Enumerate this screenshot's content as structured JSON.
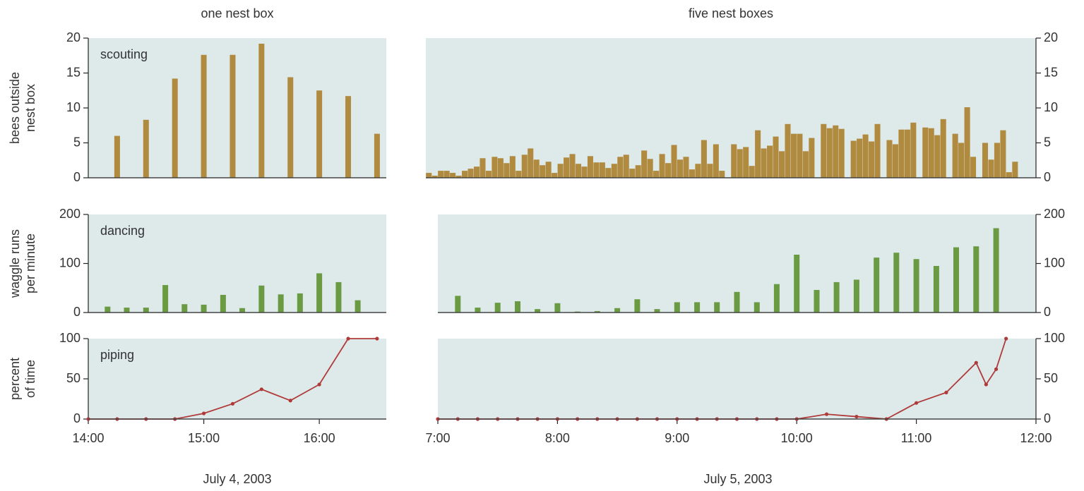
{
  "chart_data": [
    {
      "type": "bar",
      "title": "one nest box",
      "annotation": "scouting",
      "ylabel": [
        "bees outside",
        "nest box"
      ],
      "yaxis_side": "left",
      "color": "#b08a3e",
      "x": [
        14.25,
        14.5,
        14.75,
        15,
        15.25,
        15.5,
        15.75,
        16,
        16.25,
        16.5
      ],
      "values": [
        6,
        8.3,
        14.2,
        17.6,
        17.6,
        19.2,
        14.4,
        12.5,
        11.7,
        6.3
      ],
      "xlim": [
        14,
        16.58
      ],
      "ylim": [
        0,
        20
      ],
      "yticks": [
        0,
        5,
        10,
        15,
        20
      ]
    },
    {
      "type": "bar",
      "title": "five nest boxes",
      "yaxis_side": "right",
      "color": "#b08a3e",
      "x": [
        6.925,
        6.975,
        7.025,
        7.075,
        7.125,
        7.175,
        7.225,
        7.275,
        7.325,
        7.375,
        7.425,
        7.475,
        7.525,
        7.575,
        7.625,
        7.675,
        7.725,
        7.775,
        7.825,
        7.875,
        7.925,
        7.975,
        8.025,
        8.075,
        8.125,
        8.175,
        8.225,
        8.275,
        8.325,
        8.375,
        8.425,
        8.475,
        8.525,
        8.575,
        8.625,
        8.675,
        8.725,
        8.775,
        8.825,
        8.875,
        8.925,
        8.975,
        9.025,
        9.075,
        9.125,
        9.175,
        9.225,
        9.275,
        9.325,
        9.375,
        9.425,
        9.475,
        9.525,
        9.575,
        9.625,
        9.675,
        9.725,
        9.775,
        9.825,
        9.875,
        9.925,
        9.975,
        10.025,
        10.075,
        10.125,
        10.175,
        10.225,
        10.275,
        10.325,
        10.375,
        10.425,
        10.475,
        10.525,
        10.575,
        10.625,
        10.675,
        10.725,
        10.775,
        10.825,
        10.875,
        10.925,
        10.975,
        11.025,
        11.075,
        11.125,
        11.175,
        11.225,
        11.275,
        11.325,
        11.375,
        11.425,
        11.475,
        11.525,
        11.575,
        11.625,
        11.675,
        11.725,
        11.775,
        11.825
      ],
      "values": [
        0.7,
        0.3,
        1.0,
        1.0,
        0.7,
        0.3,
        1.0,
        1.3,
        1.6,
        2.8,
        1.0,
        3.0,
        2.8,
        2.1,
        3.1,
        1.0,
        3.3,
        4.2,
        2.6,
        1.8,
        2.3,
        0.7,
        2.0,
        2.9,
        3.4,
        2.0,
        1.6,
        3.1,
        2.2,
        2.2,
        1.4,
        2.0,
        3.0,
        3.3,
        1.3,
        1.8,
        3.9,
        2.7,
        1.0,
        3.4,
        2.1,
        4.7,
        2.6,
        3.0,
        1.2,
        2.0,
        5.4,
        2.0,
        4.8,
        1.0,
        0,
        4.8,
        4.1,
        4.4,
        1.7,
        6.8,
        4.2,
        4.6,
        5.9,
        3.8,
        7.7,
        6.3,
        6.3,
        3.8,
        5.7,
        0,
        7.7,
        7.1,
        7.5,
        7.0,
        0,
        5.3,
        5.6,
        6.2,
        5.2,
        7.7,
        0,
        5.4,
        4.8,
        6.9,
        6.9,
        7.9,
        0,
        7.2,
        7.1,
        6.1,
        8.4,
        0,
        6.3,
        5.0,
        10.1,
        3.0,
        0,
        5.0,
        2.6,
        5.0,
        6.8,
        0.8,
        2.3
      ],
      "xlim": [
        6.9,
        12
      ],
      "ylim": [
        0,
        20
      ],
      "yticks": [
        0,
        5,
        10,
        15,
        20
      ]
    },
    {
      "type": "bar",
      "annotation": "dancing",
      "ylabel": [
        "waggle runs",
        "per minute"
      ],
      "yaxis_side": "left",
      "color": "#6a9a42",
      "x": [
        14.167,
        14.333,
        14.5,
        14.667,
        14.833,
        15,
        15.167,
        15.333,
        15.5,
        15.667,
        15.833,
        16,
        16.167,
        16.333
      ],
      "values": [
        12,
        10,
        10,
        56,
        17,
        16,
        36,
        9,
        55,
        37,
        39,
        80,
        62,
        25
      ],
      "xlim": [
        14,
        16.58
      ],
      "ylim": [
        0,
        200
      ],
      "yticks": [
        0,
        100,
        200
      ]
    },
    {
      "type": "bar",
      "yaxis_side": "right",
      "color": "#6a9a42",
      "x": [
        7.167,
        7.333,
        7.5,
        7.667,
        7.833,
        8,
        8.167,
        8.333,
        8.5,
        8.667,
        8.833,
        9,
        9.167,
        9.333,
        9.5,
        9.667,
        9.833,
        10,
        10.167,
        10.333,
        10.5,
        10.667,
        10.833,
        11,
        11.167,
        11.333,
        11.5,
        11.667
      ],
      "values": [
        34,
        10,
        20,
        23,
        7,
        19,
        2,
        3,
        9,
        27,
        7,
        21,
        21,
        21,
        42,
        21,
        58,
        118,
        46,
        62,
        67,
        112,
        122,
        109,
        95,
        133,
        135,
        172
      ],
      "xlim": [
        7,
        12
      ],
      "ylim": [
        0,
        200
      ],
      "yticks": [
        0,
        100,
        200
      ]
    },
    {
      "type": "line",
      "annotation": "piping",
      "ylabel": [
        "percent",
        "of time"
      ],
      "xlabel": "July 4, 2003",
      "yaxis_side": "left",
      "color": "#b03a3a",
      "x": [
        14,
        14.25,
        14.5,
        14.75,
        15,
        15.25,
        15.5,
        15.75,
        16,
        16.25,
        16.5
      ],
      "values": [
        0,
        0,
        0,
        0,
        7,
        19,
        37,
        23,
        43,
        100,
        100
      ],
      "xlim": [
        14,
        16.58
      ],
      "ylim": [
        0,
        100
      ],
      "yticks": [
        0,
        50,
        100
      ],
      "xticks": [
        {
          "value": 14,
          "label": "14:00"
        },
        {
          "value": 15,
          "label": "15:00"
        },
        {
          "value": 16,
          "label": "16:00"
        }
      ]
    },
    {
      "type": "line",
      "xlabel": "July 5, 2003",
      "yaxis_side": "right",
      "color": "#b03a3a",
      "x": [
        7,
        7.167,
        7.333,
        7.5,
        7.667,
        7.833,
        8,
        8.167,
        8.333,
        8.5,
        8.667,
        8.833,
        9,
        9.167,
        9.333,
        9.5,
        9.667,
        9.833,
        10,
        10.25,
        10.5,
        10.75,
        11,
        11.25,
        11.5,
        11.583,
        11.667,
        11.75
      ],
      "values": [
        0,
        0,
        0,
        0,
        0,
        0,
        0,
        0,
        0,
        0,
        0,
        0,
        0,
        0,
        0,
        0,
        0,
        0,
        0,
        6,
        3,
        0,
        20,
        33,
        70,
        43,
        62,
        100
      ],
      "xlim": [
        7,
        12
      ],
      "ylim": [
        0,
        100
      ],
      "yticks": [
        0,
        50,
        100
      ],
      "xticks": [
        {
          "value": 7,
          "label": "7:00"
        },
        {
          "value": 8,
          "label": "8:00"
        },
        {
          "value": 9,
          "label": "9:00"
        },
        {
          "value": 10,
          "label": "10:00"
        },
        {
          "value": 11,
          "label": "11:00"
        },
        {
          "value": 12,
          "label": "12:00"
        }
      ]
    }
  ]
}
